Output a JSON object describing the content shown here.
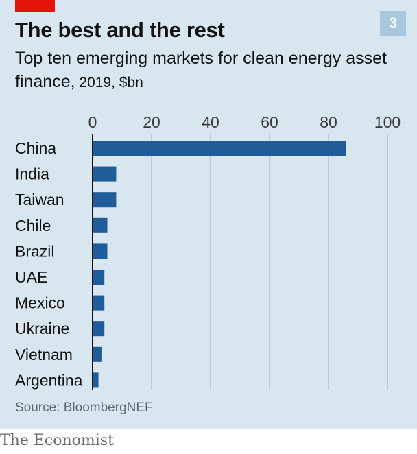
{
  "header": {
    "title": "The best and the rest",
    "badge": "3",
    "subtitle_main": "Top ten emerging markets for clean energy asset finance,",
    "subtitle_unit": " 2019, $bn"
  },
  "footer": {
    "source": "Source: BloombergNEF",
    "brand": "The Economist"
  },
  "colors": {
    "bar": "#1f5c99",
    "grid": "#b9cfdc",
    "axis": "#121212",
    "panel": "#d7e6ef",
    "accent": "#e3120b"
  },
  "chart_data": {
    "type": "bar",
    "orientation": "horizontal",
    "title": "The best and the rest",
    "subtitle": "Top ten emerging markets for clean energy asset finance, 2019, $bn",
    "categories": [
      "China",
      "India",
      "Taiwan",
      "Chile",
      "Brazil",
      "UAE",
      "Mexico",
      "Ukraine",
      "Vietnam",
      "Argentina"
    ],
    "values": [
      86,
      8,
      8,
      5,
      5,
      4,
      4,
      4,
      3,
      2
    ],
    "xlim": [
      0,
      100
    ],
    "xticks": [
      0,
      20,
      40,
      60,
      80,
      100
    ],
    "grid": true,
    "source": "Source: BloombergNEF"
  }
}
